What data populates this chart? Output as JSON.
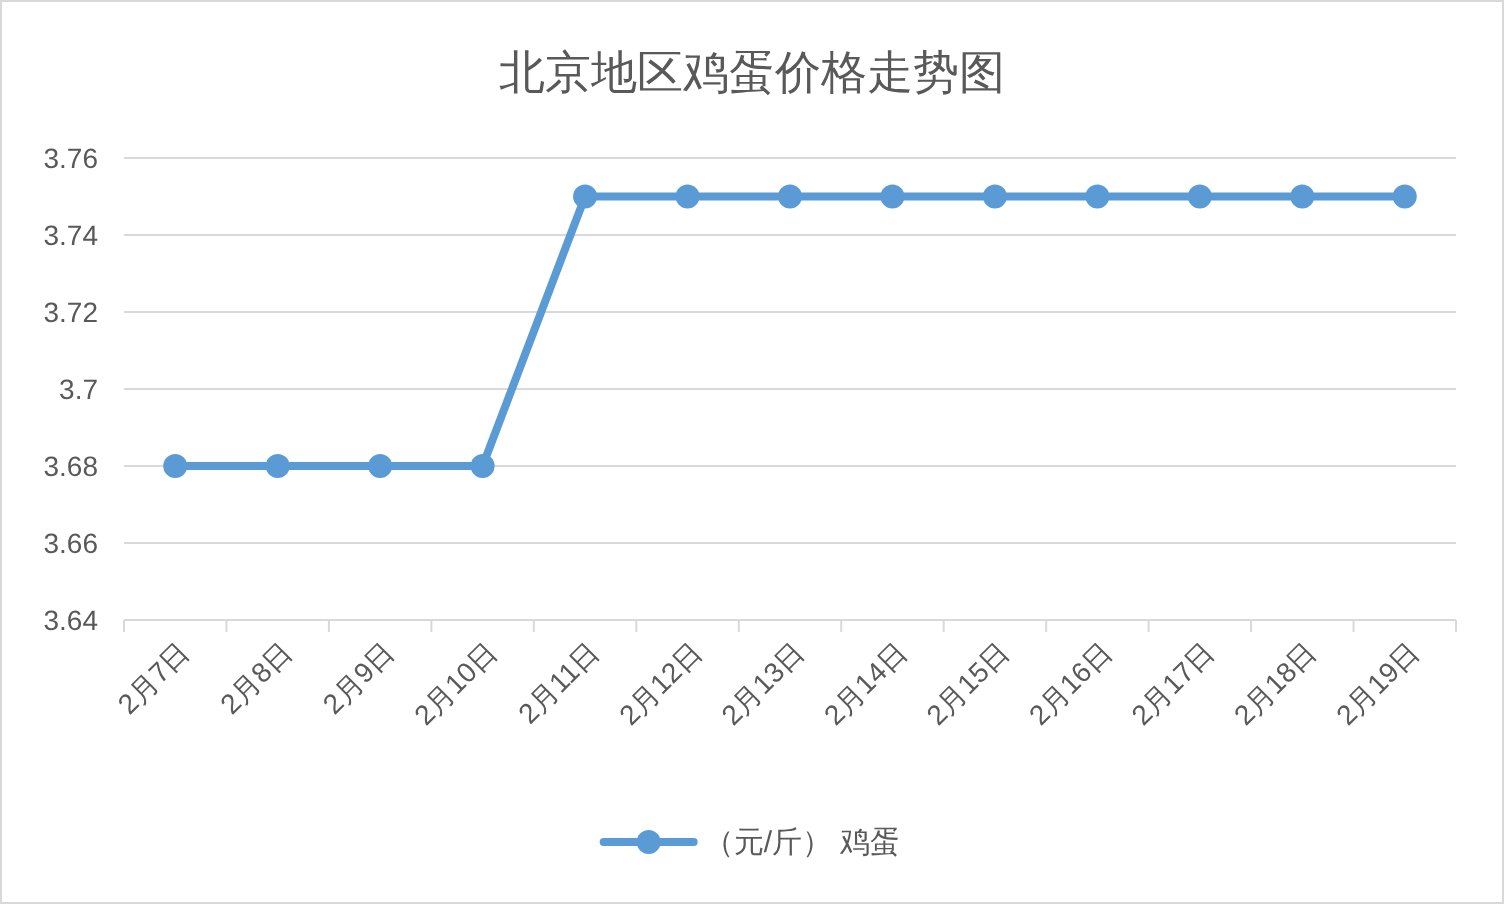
{
  "chart_data": {
    "type": "line",
    "title": "北京地区鸡蛋价格走势图",
    "categories": [
      "2月7日",
      "2月8日",
      "2月9日",
      "2月10日",
      "2月11日",
      "2月12日",
      "2月13日",
      "2月14日",
      "2月15日",
      "2月16日",
      "2月17日",
      "2月18日",
      "2月19日"
    ],
    "series": [
      {
        "name": "（元/斤） 鸡蛋",
        "color": "#5b9bd5",
        "values": [
          3.68,
          3.68,
          3.68,
          3.68,
          3.75,
          3.75,
          3.75,
          3.75,
          3.75,
          3.75,
          3.75,
          3.75,
          3.75
        ]
      }
    ],
    "ylim": [
      3.64,
      3.76
    ],
    "yticks": [
      3.64,
      3.66,
      3.68,
      3.7,
      3.72,
      3.74,
      3.76
    ],
    "grid": "y",
    "legend": "bottom",
    "marker": "circle",
    "line_style": "solid"
  }
}
